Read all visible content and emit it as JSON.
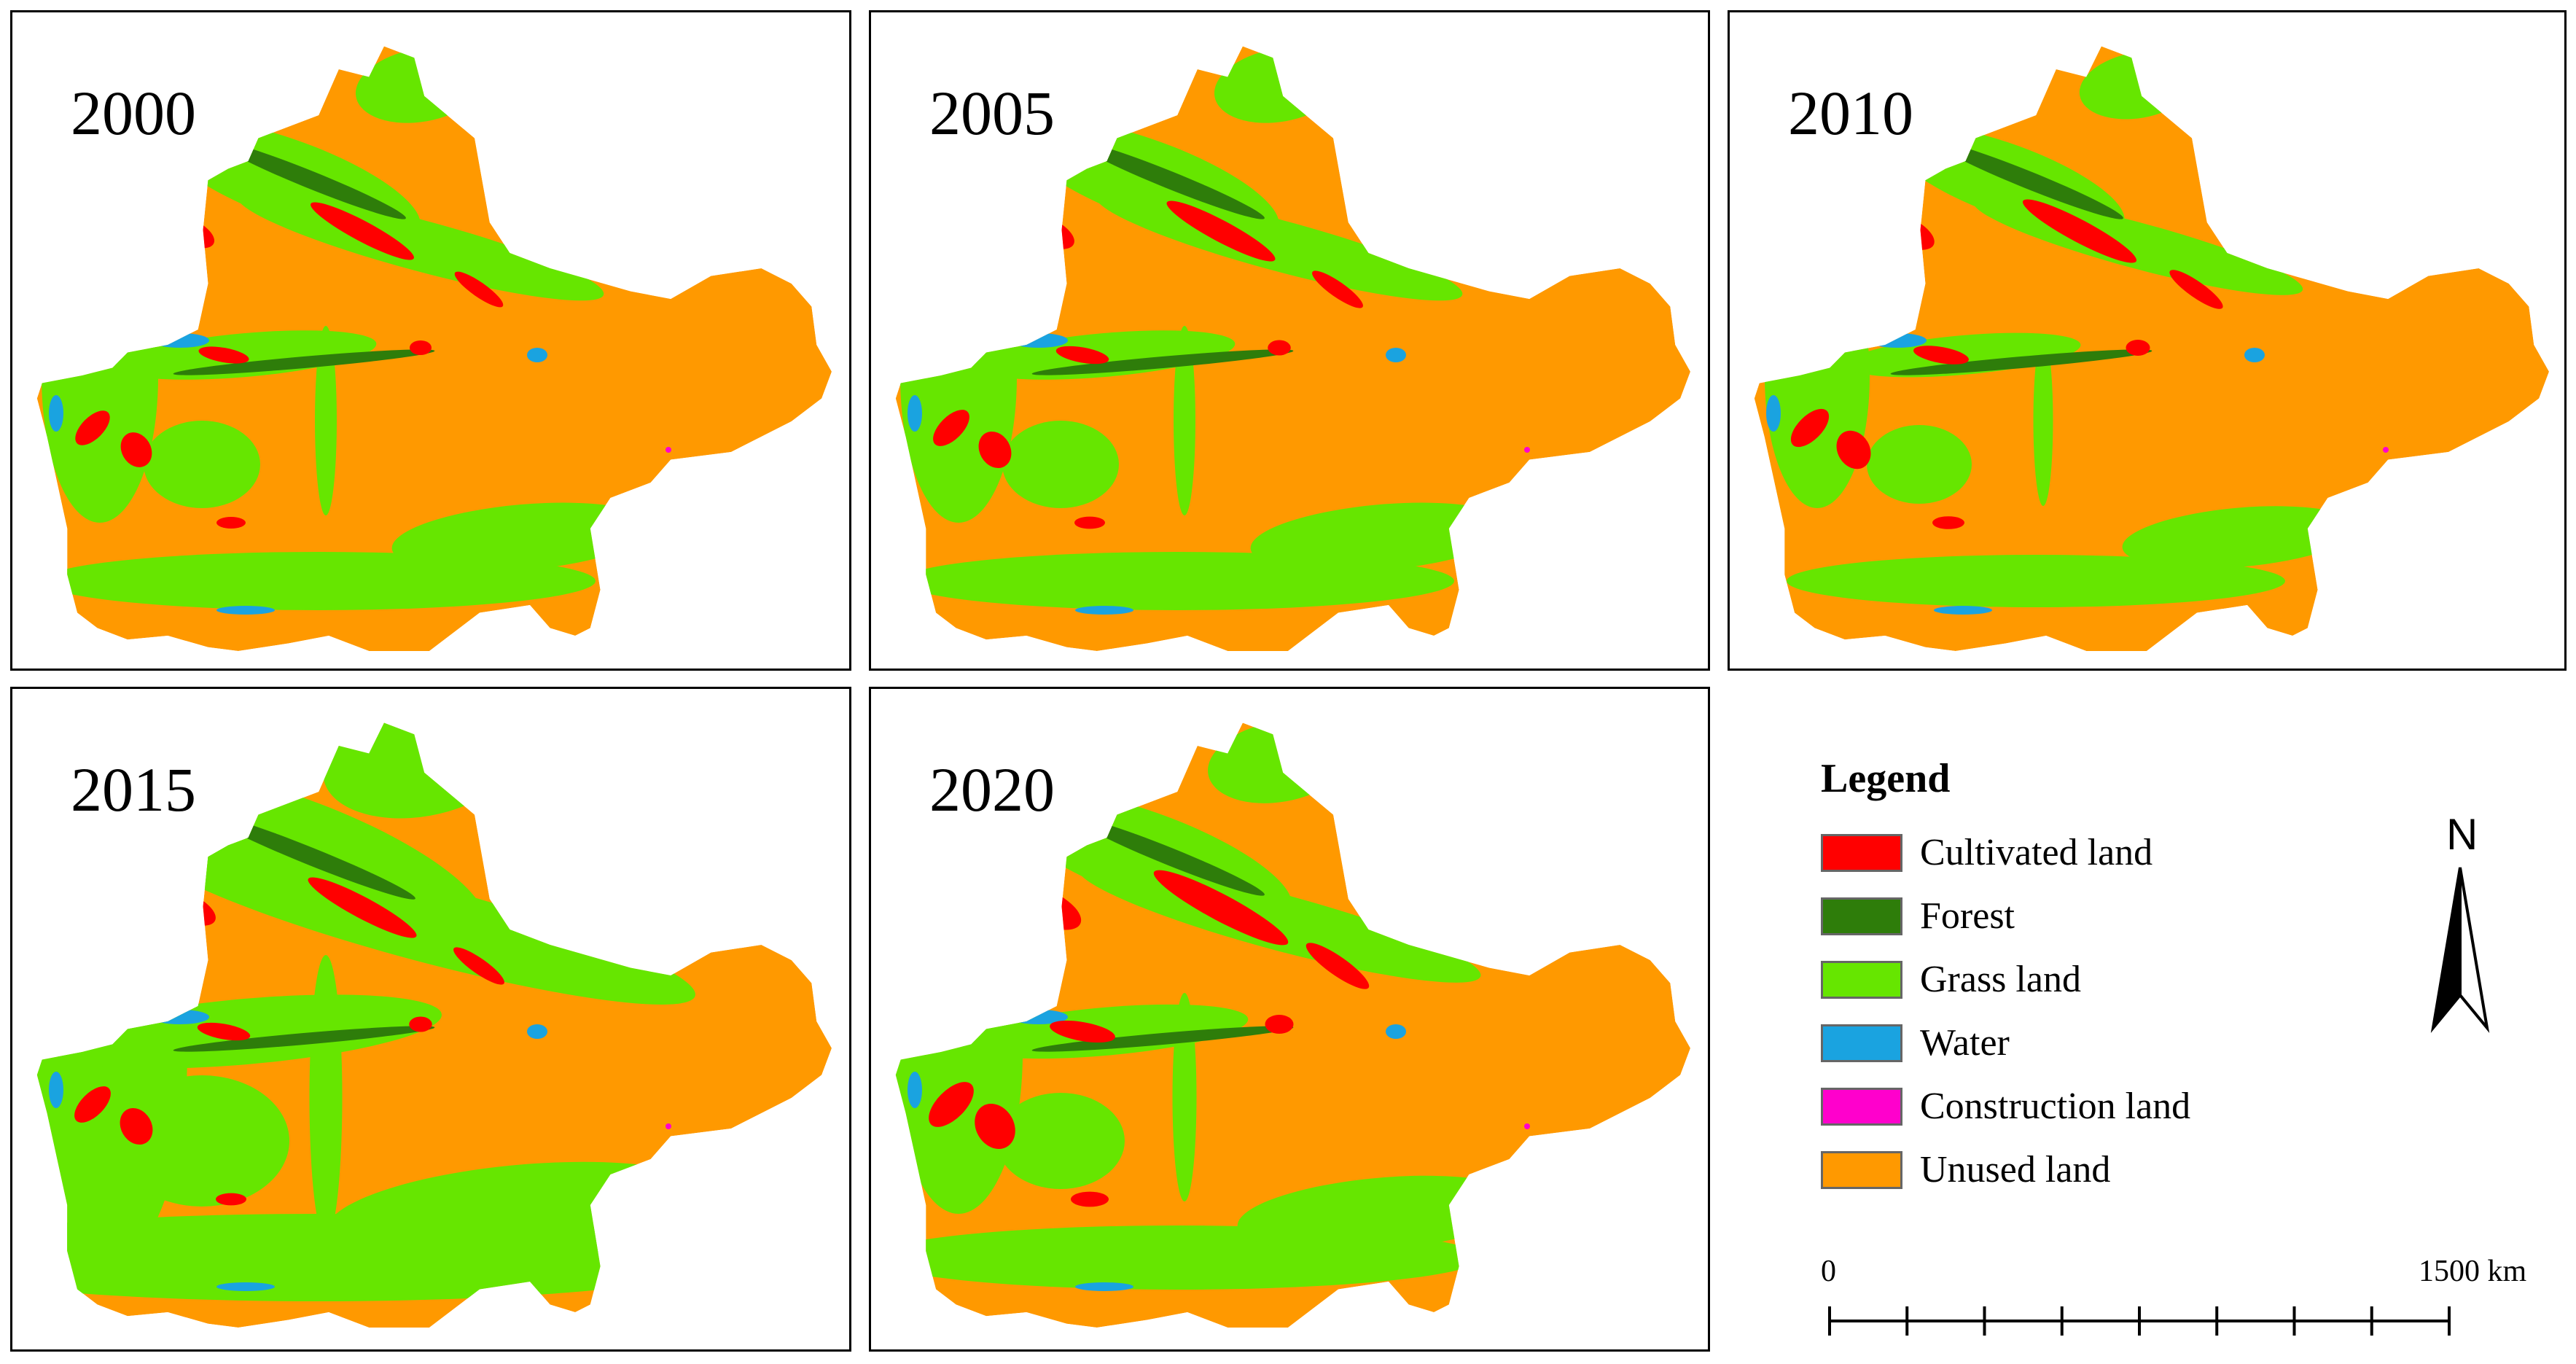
{
  "panels": [
    {
      "year": "2000"
    },
    {
      "year": "2005"
    },
    {
      "year": "2010"
    },
    {
      "year": "2015"
    },
    {
      "year": "2020"
    }
  ],
  "legend": {
    "title": "Legend",
    "items": [
      {
        "label": "Cultivated land",
        "color": "#ff0000"
      },
      {
        "label": "Forest",
        "color": "#2e7d0a"
      },
      {
        "label": "Grass land",
        "color": "#66e600"
      },
      {
        "label": "Water",
        "color": "#1aa3e0"
      },
      {
        "label": "Construction land",
        "color": "#ff00cc"
      },
      {
        "label": "Unused land",
        "color": "#ff9900"
      }
    ]
  },
  "north_arrow": {
    "label": "N"
  },
  "scale_bar": {
    "start_label": "0",
    "end_label": "1500 km"
  }
}
